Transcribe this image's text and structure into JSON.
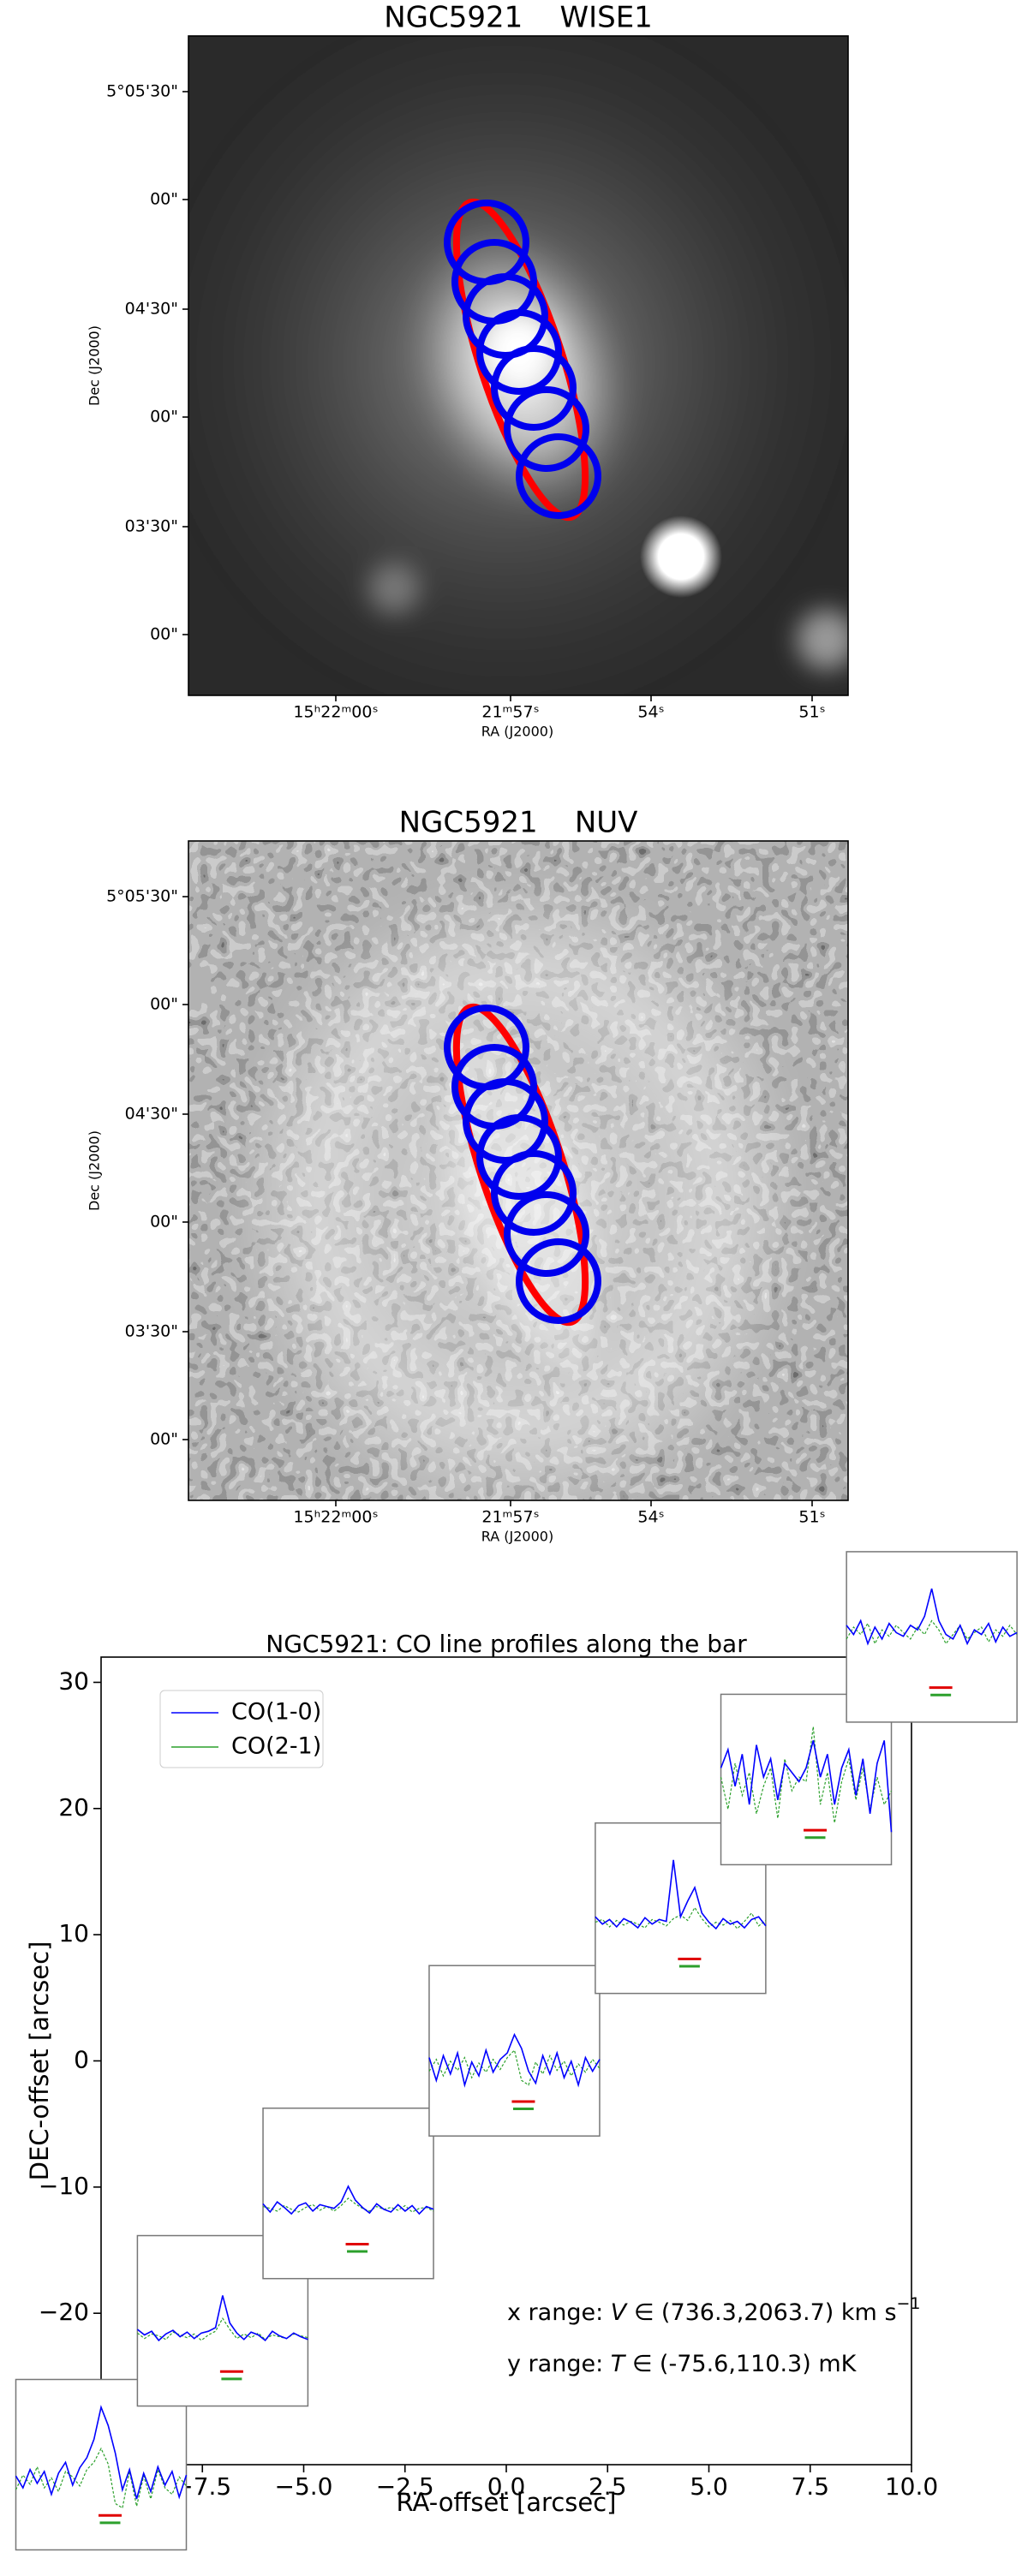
{
  "images": [
    {
      "title": "NGC5921    WISE1",
      "dec_ticks": [
        "5°05'30\"",
        "00\"",
        "04'30\"",
        "00\"",
        "03'30\"",
        "00\""
      ],
      "ra_ticks": [
        "15ʰ22ᵐ00ˢ",
        "21ᵐ57ˢ",
        "54ˢ",
        "51ˢ"
      ],
      "xlabel": "RA (J2000)",
      "ylabel": "Dec (J2000)"
    },
    {
      "title": "NGC5921    NUV",
      "dec_ticks": [
        "5°05'30\"",
        "00\"",
        "04'30\"",
        "00\"",
        "03'30\"",
        "00\""
      ],
      "ra_ticks": [
        "15ʰ22ᵐ00ˢ",
        "21ᵐ57ˢ",
        "54ˢ",
        "51ˢ"
      ],
      "xlabel": "RA (J2000)",
      "ylabel": "Dec (J2000)"
    }
  ],
  "chart_data": {
    "type": "inset_spectra",
    "title": "NGC5921: CO line profiles along the bar",
    "xlabel": "RA-offset [arcsec]",
    "ylabel": "DEC-offset [arcsec]",
    "xlim": [
      -10,
      10
    ],
    "ylim": [
      -32,
      32
    ],
    "xticks": [
      {
        "value": -7.5,
        "label": "−7.5"
      },
      {
        "value": -5,
        "label": "−5.0"
      },
      {
        "value": -2.5,
        "label": "−2.5"
      },
      {
        "value": 0,
        "label": "0.0"
      },
      2.5,
      {
        "value": 5,
        "label": "5.0"
      },
      7.5,
      {
        "value": 10,
        "label": "10.0"
      }
    ],
    "yticks": [
      {
        "value": -20,
        "label": "−20"
      },
      {
        "value": -10,
        "label": "−10"
      },
      0,
      10,
      20,
      30
    ],
    "grid": false,
    "legend_entries": [
      {
        "name": "CO(1-0)",
        "color": "#0000ff"
      },
      {
        "name": "CO(2-1)",
        "color": "#2ca02c"
      }
    ],
    "annotations": [
      {
        "parts": [
          "x range: ",
          "V",
          " ∈ (736.3,2063.7) km s",
          "−1"
        ]
      },
      {
        "parts": [
          "y range: ",
          "T",
          " ∈ (-75.6,110.3) mK"
        ]
      }
    ],
    "spectra": {
      "xlim": [
        736.3,
        2063.7
      ],
      "ylim": [
        -75.6,
        110.3
      ],
      "x": [
        736.3,
        791.6,
        846.9,
        902.2,
        957.5,
        1012.9,
        1068.2,
        1123.5,
        1178.8,
        1234.1,
        1289.3,
        1344.6,
        1400.0,
        1455.3,
        1510.6,
        1565.9,
        1621.2,
        1676.5,
        1731.8,
        1787.1,
        1842.4,
        1897.7,
        1953.0,
        2008.3,
        2063.7
      ],
      "windows": [
        {
          "color": "#e00000",
          "range": [
            1380,
            1560
          ],
          "level": -38
        },
        {
          "color": "#2ca02c",
          "range": [
            1390,
            1550
          ],
          "level": -46
        }
      ]
    },
    "insets": [
      {
        "x": -10,
        "y": -32,
        "series": [
          {
            "values": [
              5,
              -8,
              12,
              -3,
              10,
              -15,
              8,
              20,
              -5,
              14,
              25,
              45,
              80,
              60,
              30,
              -10,
              12,
              -20,
              8,
              -12,
              15,
              -5,
              10,
              -18,
              6
            ]
          },
          {
            "values": [
              -10,
              6,
              -4,
              15,
              -8,
              3,
              -12,
              10,
              4,
              -6,
              12,
              20,
              35,
              18,
              -25,
              -30,
              10,
              -28,
              5,
              -20,
              12,
              -8,
              -15,
              4,
              -6
            ]
          }
        ]
      },
      {
        "x": -7,
        "y": -20.6,
        "series": [
          {
            "values": [
              8,
              2,
              6,
              -4,
              3,
              7,
              0,
              5,
              -2,
              4,
              6,
              10,
              45,
              15,
              4,
              -3,
              5,
              2,
              -4,
              6,
              1,
              -2,
              4,
              0,
              -3
            ]
          },
          {
            "values": [
              4,
              -2,
              3,
              1,
              -3,
              5,
              2,
              -1,
              3,
              -4,
              2,
              6,
              20,
              8,
              -2,
              3,
              -1,
              4,
              -3,
              2,
              0,
              -2,
              3,
              1,
              -1
            ]
          }
        ]
      },
      {
        "x": -3.9,
        "y": -10.5,
        "series": [
          {
            "values": [
              6,
              -3,
              8,
              2,
              -5,
              4,
              7,
              -2,
              5,
              3,
              1,
              8,
              25,
              10,
              2,
              -4,
              6,
              0,
              -3,
              5,
              -2,
              4,
              -5,
              3,
              0
            ]
          },
          {
            "values": [
              3,
              1,
              -2,
              4,
              0,
              -3,
              2,
              5,
              -1,
              3,
              -2,
              4,
              12,
              6,
              1,
              -2,
              3,
              0,
              2,
              -1,
              4,
              -3,
              1,
              2,
              -2
            ]
          }
        ]
      },
      {
        "x": 0.2,
        "y": 0.8,
        "series": [
          {
            "values": [
              10,
              -15,
              12,
              -8,
              15,
              -20,
              5,
              -10,
              18,
              -6,
              8,
              15,
              35,
              20,
              -5,
              -18,
              12,
              -8,
              15,
              -12,
              6,
              -20,
              10,
              -5,
              8
            ]
          },
          {
            "values": [
              -5,
              8,
              -10,
              6,
              -4,
              10,
              -12,
              4,
              -6,
              8,
              -3,
              10,
              18,
              -15,
              -20,
              5,
              -8,
              12,
              -4,
              6,
              -10,
              3,
              -6,
              8,
              -2
            ]
          }
        ]
      },
      {
        "x": 4.3,
        "y": 12.1,
        "series": [
          {
            "values": [
              8,
              0,
              5,
              -3,
              6,
              2,
              -4,
              7,
              0,
              5,
              3,
              70,
              8,
              25,
              40,
              12,
              2,
              -5,
              6,
              0,
              3,
              -4,
              5,
              8,
              -2
            ]
          },
          {
            "values": [
              2,
              5,
              -3,
              4,
              -1,
              3,
              0,
              -4,
              5,
              2,
              -2,
              6,
              10,
              4,
              18,
              6,
              -3,
              2,
              -1,
              4,
              -5,
              3,
              12,
              -2,
              4
            ]
          }
        ]
      },
      {
        "x": 7.4,
        "y": 22.3,
        "series": [
          {
            "values": [
              30,
              50,
              10,
              45,
              -10,
              55,
              20,
              40,
              -5,
              35,
              25,
              15,
              30,
              60,
              20,
              45,
              -10,
              30,
              50,
              0,
              40,
              -20,
              35,
              60,
              -40
            ]
          },
          {
            "values": [
              20,
              -15,
              35,
              0,
              25,
              -20,
              10,
              30,
              -25,
              40,
              5,
              20,
              15,
              75,
              -10,
              25,
              -30,
              15,
              40,
              -5,
              30,
              -15,
              20,
              -10,
              5
            ]
          }
        ]
      },
      {
        "x": 10.5,
        "y": 33.6,
        "series": [
          {
            "values": [
              30,
              20,
              35,
              10,
              28,
              15,
              32,
              22,
              18,
              30,
              25,
              40,
              70,
              35,
              20,
              15,
              30,
              10,
              25,
              20,
              32,
              12,
              28,
              18,
              22
            ]
          },
          {
            "values": [
              15,
              28,
              20,
              32,
              10,
              25,
              18,
              30,
              22,
              15,
              28,
              20,
              35,
              25,
              10,
              20,
              30,
              15,
              22,
              28,
              12,
              25,
              18,
              30,
              20
            ]
          }
        ]
      }
    ]
  }
}
